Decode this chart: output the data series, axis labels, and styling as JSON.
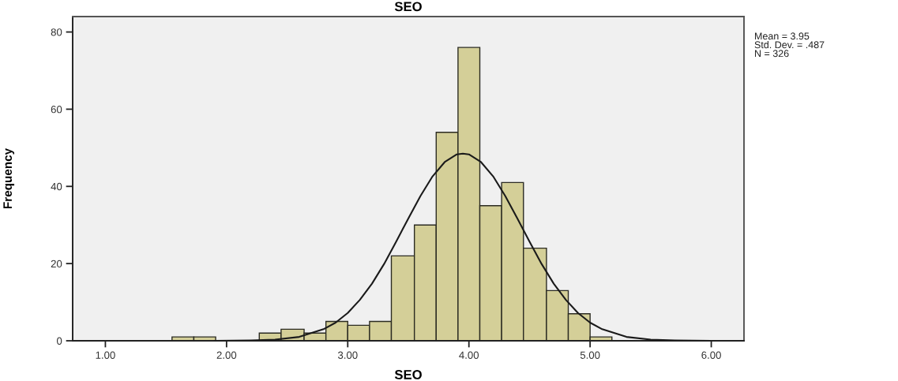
{
  "chart_data": {
    "type": "histogram",
    "title": "SEO",
    "xlabel": "SEO",
    "ylabel": "Frequency",
    "bins": [
      1.55,
      1.73,
      1.91,
      2.27,
      2.45,
      2.64,
      2.82,
      3.0,
      3.18,
      3.36,
      3.55,
      3.73,
      3.91,
      4.09,
      4.27,
      4.45,
      4.64,
      4.82,
      5.0,
      5.18
    ],
    "series": [
      {
        "type": "histogram",
        "color": "#d4cf98",
        "values": [
          1,
          1,
          0,
          2,
          3,
          2,
          5,
          4,
          5,
          22,
          30,
          54,
          76,
          35,
          41,
          24,
          13,
          7,
          1
        ]
      },
      {
        "type": "line",
        "color": "#1a1a1a",
        "x": [
          1.9,
          2.2,
          2.4,
          2.6,
          2.8,
          2.9,
          3.0,
          3.1,
          3.2,
          3.3,
          3.4,
          3.5,
          3.6,
          3.7,
          3.8,
          3.9,
          3.95,
          4.0,
          4.1,
          4.2,
          4.3,
          4.4,
          4.5,
          4.6,
          4.7,
          4.8,
          4.9,
          5.0,
          5.1,
          5.3,
          5.5,
          5.7,
          6.0
        ],
        "values": [
          0.0,
          0.1,
          0.3,
          1.0,
          3.0,
          4.7,
          7.2,
          10.6,
          14.8,
          19.9,
          25.7,
          31.7,
          37.5,
          42.6,
          46.3,
          48.3,
          48.5,
          48.3,
          46.3,
          42.6,
          37.5,
          31.7,
          25.7,
          19.9,
          14.8,
          10.6,
          7.2,
          4.7,
          3.0,
          1.0,
          0.3,
          0.1,
          0.0
        ]
      }
    ],
    "xlim": [
      0.73,
      6.27
    ],
    "ylim": [
      0,
      84
    ],
    "xticks": [
      {
        "value": 1,
        "label": "1.00"
      },
      {
        "value": 2,
        "label": "2.00"
      },
      {
        "value": 3,
        "label": "3.00"
      },
      {
        "value": 4,
        "label": "4.00"
      },
      {
        "value": 5,
        "label": "5.00"
      },
      {
        "value": 6,
        "label": "6.00"
      }
    ],
    "yticks": [
      0,
      20,
      40,
      60,
      80
    ],
    "annotations": [
      "Mean = 3.95",
      "Std. Dev. = .487",
      "N = 326"
    ]
  }
}
